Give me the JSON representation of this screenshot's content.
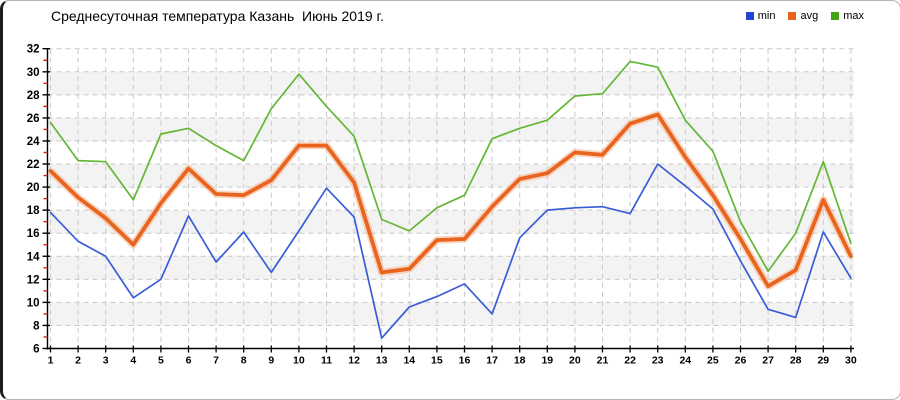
{
  "title": "Среднесуточная температура Казань  Июнь 2019 г.",
  "colors": {
    "background": "#ffffff",
    "border": "#b5b5b5",
    "border_left": "#1c1c1c",
    "plot_band": "#f3f3f3",
    "gridline": "#c9c9c9",
    "axis": "#000000",
    "minor_tick": "#cc2222",
    "min_series": "#3a5cd6",
    "avg_series": "#e8641f",
    "avg_halo": "#f6b690",
    "max_series": "#64b734"
  },
  "legend": {
    "position": "top-right",
    "items": [
      {
        "label": "min",
        "color": "#2443d6"
      },
      {
        "label": "avg",
        "color": "#e8641f"
      },
      {
        "label": "max",
        "color": "#46a416"
      }
    ]
  },
  "chart_data": {
    "type": "line",
    "title": "Среднесуточная температура Казань  Июнь 2019 г.",
    "xlabel": "",
    "ylabel": "",
    "x": [
      1,
      2,
      3,
      4,
      5,
      6,
      7,
      8,
      9,
      10,
      11,
      12,
      13,
      14,
      15,
      16,
      17,
      18,
      19,
      20,
      21,
      22,
      23,
      24,
      25,
      26,
      27,
      28,
      29,
      30
    ],
    "x_tick_labels": [
      "1",
      "2",
      "3",
      "4",
      "5",
      "6",
      "7",
      "8",
      "9",
      "10",
      "11",
      "12",
      "13",
      "14",
      "15",
      "16",
      "17",
      "18",
      "19",
      "20",
      "21",
      "22",
      "23",
      "24",
      "25",
      "26",
      "27",
      "28",
      "29",
      "30"
    ],
    "ylim": [
      6,
      32
    ],
    "y_tick_step": 2,
    "y_minor_tick_step": 1,
    "y_tick_labels": [
      "6",
      "8",
      "10",
      "12",
      "14",
      "16",
      "18",
      "20",
      "22",
      "24",
      "26",
      "28",
      "30",
      "32"
    ],
    "grid": "dashed gray horizontal and vertical gridlines, alternating light-gray horizontal bands",
    "legend_position": "top-right",
    "series": [
      {
        "name": "min",
        "color": "#3a5cd6",
        "thick": false,
        "values": [
          17.8,
          15.3,
          14.0,
          10.4,
          12.0,
          17.5,
          13.5,
          16.1,
          12.6,
          16.2,
          19.9,
          17.4,
          6.9,
          9.6,
          10.5,
          11.6,
          9.0,
          15.6,
          18.0,
          18.2,
          18.3,
          17.7,
          22.0,
          20.1,
          18.1,
          13.6,
          9.4,
          8.7,
          16.1,
          12.1
        ]
      },
      {
        "name": "avg",
        "color": "#e8641f",
        "thick": true,
        "values": [
          21.4,
          19.1,
          17.3,
          15.0,
          18.6,
          21.6,
          19.4,
          19.3,
          20.6,
          23.6,
          23.6,
          20.4,
          12.6,
          12.9,
          15.4,
          15.5,
          18.3,
          20.7,
          21.2,
          23.0,
          22.8,
          25.5,
          26.3,
          22.6,
          19.3,
          15.5,
          11.4,
          12.8,
          18.9,
          14.0
        ]
      },
      {
        "name": "max",
        "color": "#64b734",
        "thick": false,
        "values": [
          25.6,
          22.3,
          22.2,
          18.9,
          24.6,
          25.1,
          23.6,
          22.3,
          26.8,
          29.8,
          27.0,
          24.4,
          17.2,
          16.2,
          18.2,
          19.3,
          24.2,
          25.1,
          25.8,
          27.9,
          28.1,
          30.9,
          30.4,
          25.8,
          23.1,
          17.0,
          12.7,
          16.0,
          22.2,
          15.1
        ]
      }
    ]
  }
}
